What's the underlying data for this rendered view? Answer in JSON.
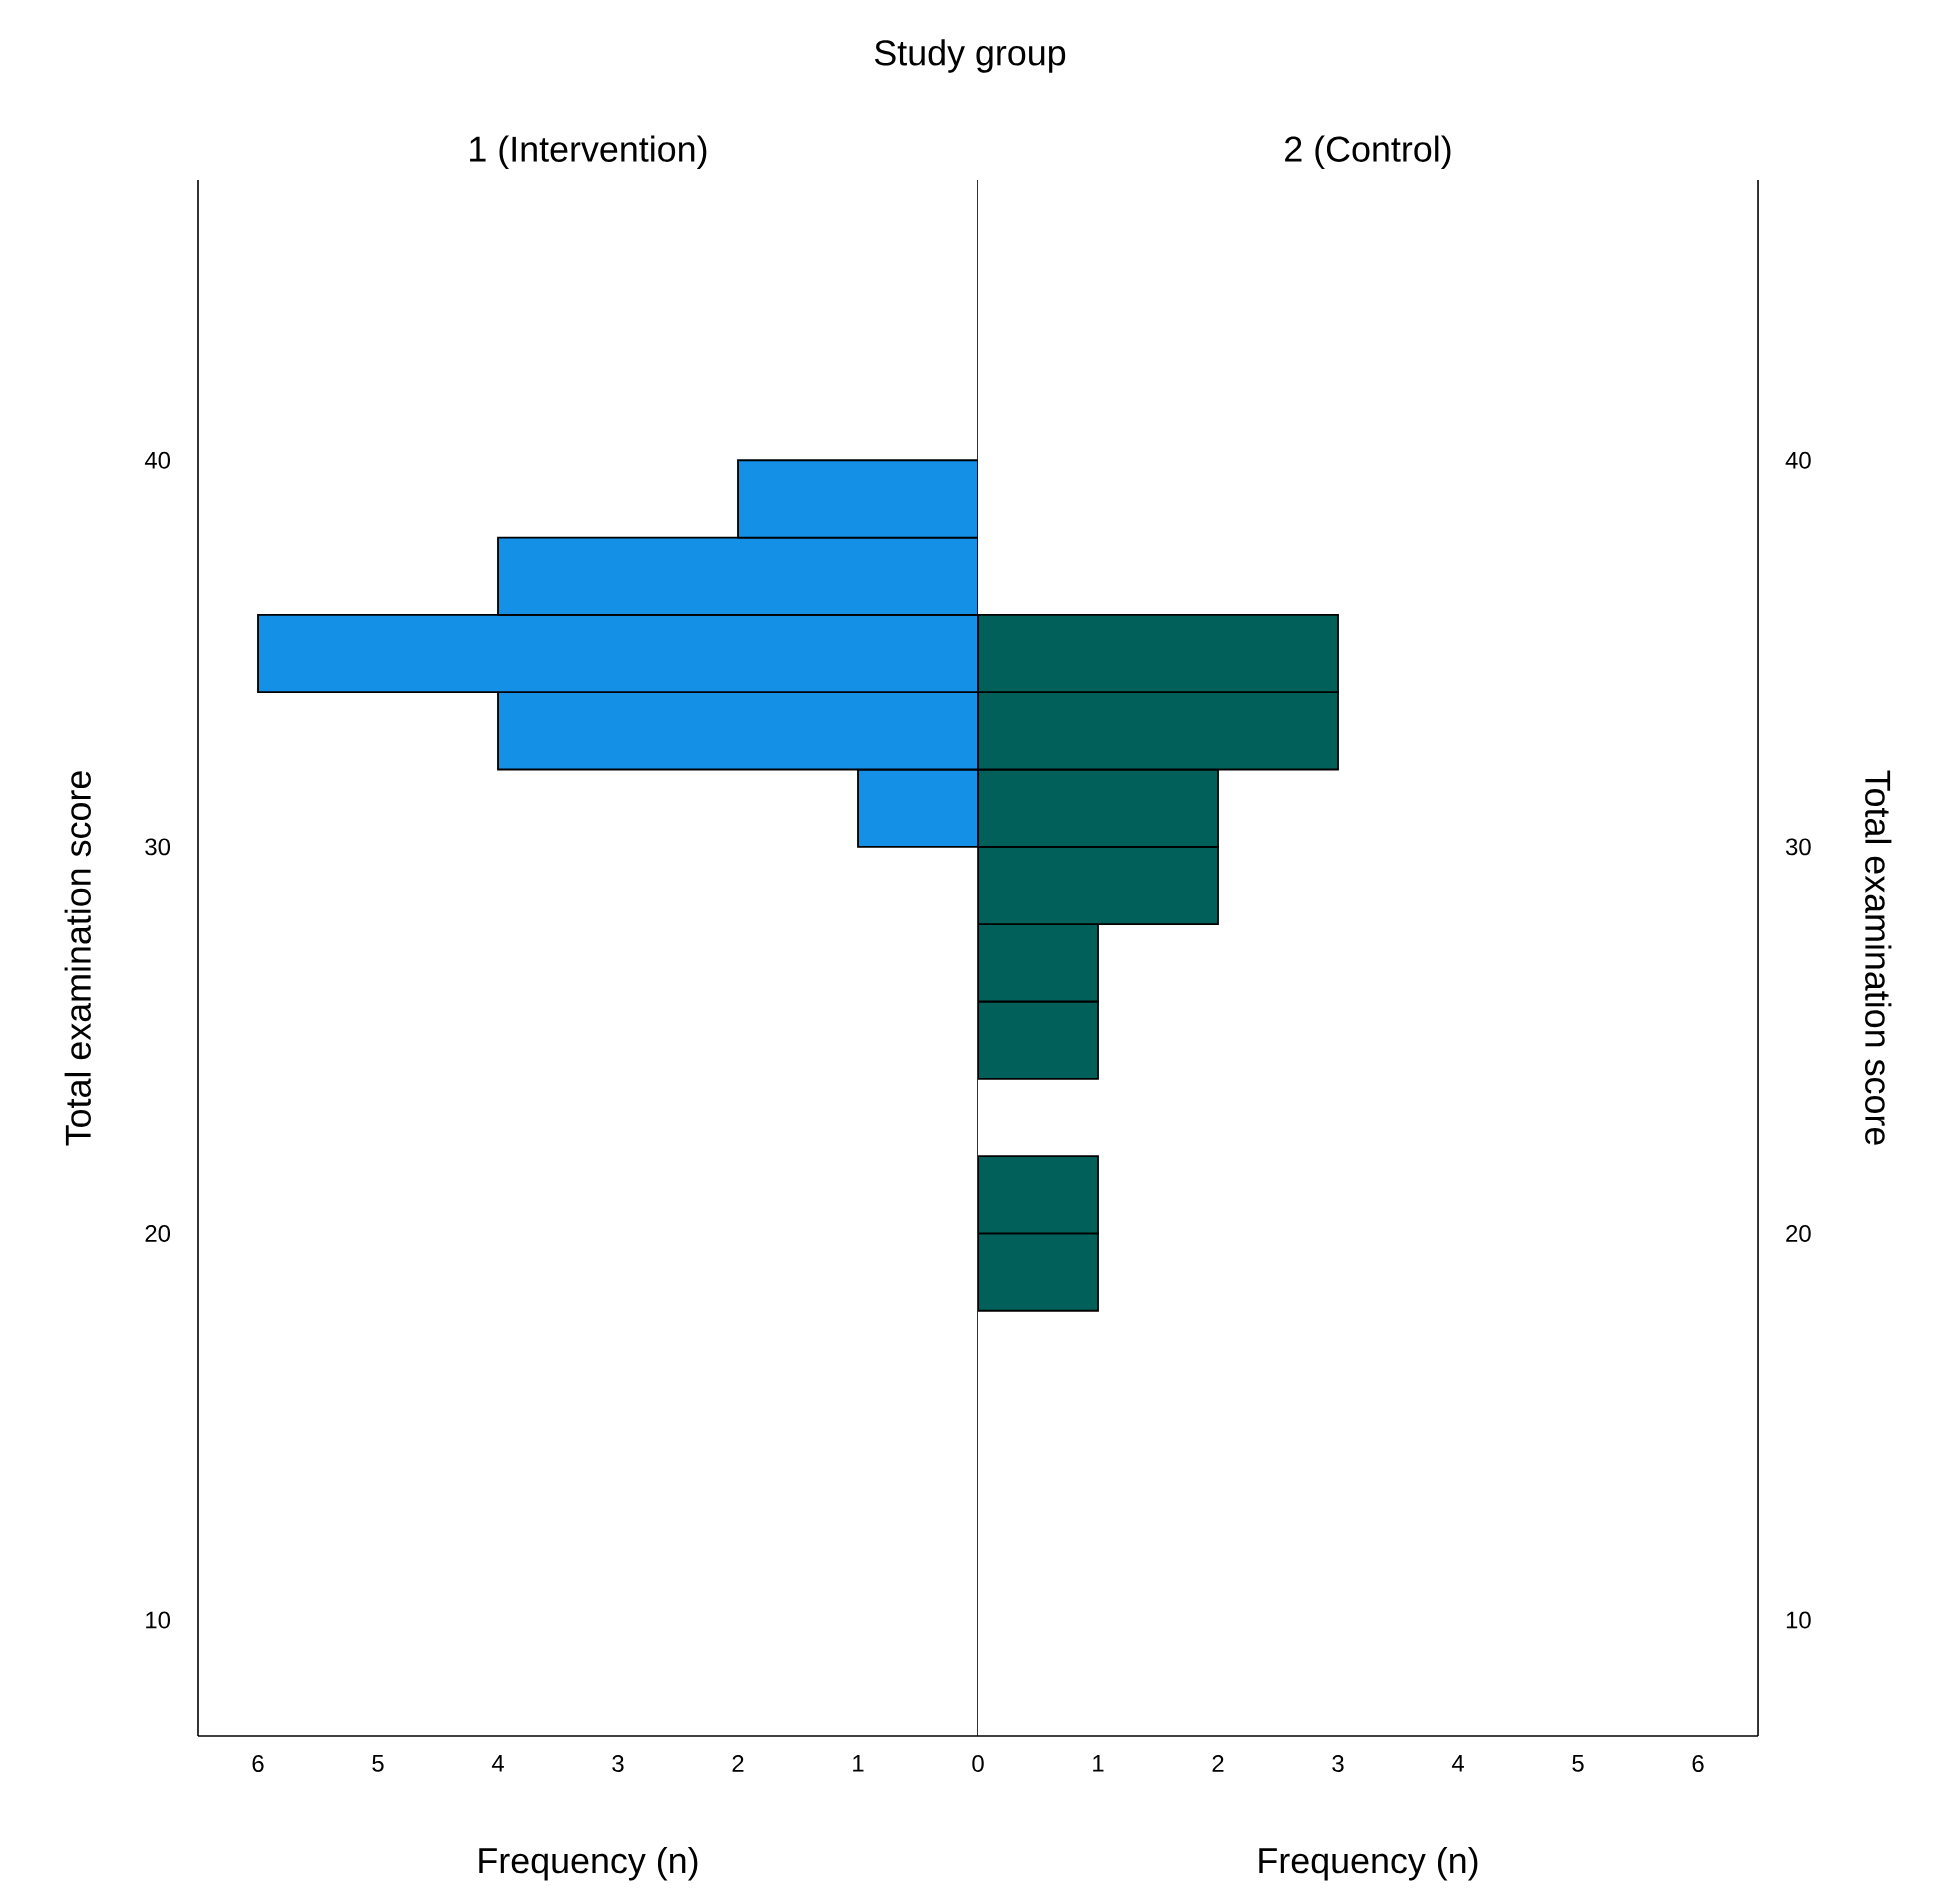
{
  "chart_data": [
    {
      "type": "histogram",
      "orientation": "horizontal",
      "title": "Study group",
      "subtitle": "1 (Intervention)",
      "xlabel": "Frequency (n)",
      "ylabel": "Total examination score",
      "bins": [
        30,
        32,
        34,
        36,
        38,
        40
      ],
      "values": [
        1,
        4,
        6,
        4,
        2
      ],
      "color": "#1490e6",
      "xlim": [
        6.5,
        0
      ],
      "xticks": [
        6,
        5,
        4,
        3,
        2,
        1
      ],
      "ylim": [
        7,
        47.25
      ],
      "yticks": [
        10,
        20,
        30,
        40
      ]
    },
    {
      "type": "histogram",
      "orientation": "horizontal",
      "subtitle": "2 (Control)",
      "xlabel": "Frequency (n)",
      "ylabel": "Total examination score",
      "bins": [
        18,
        20,
        22,
        24,
        26,
        28,
        30,
        32,
        34,
        36
      ],
      "values": [
        1,
        1,
        0,
        1,
        1,
        2,
        2,
        3,
        3
      ],
      "color": "#02605a",
      "xlim": [
        0,
        6.5
      ],
      "xticks": [
        0,
        1,
        2,
        3,
        4,
        5,
        6
      ],
      "ylim": [
        7,
        47.25
      ],
      "yticks": [
        10,
        20,
        30,
        40
      ]
    }
  ]
}
